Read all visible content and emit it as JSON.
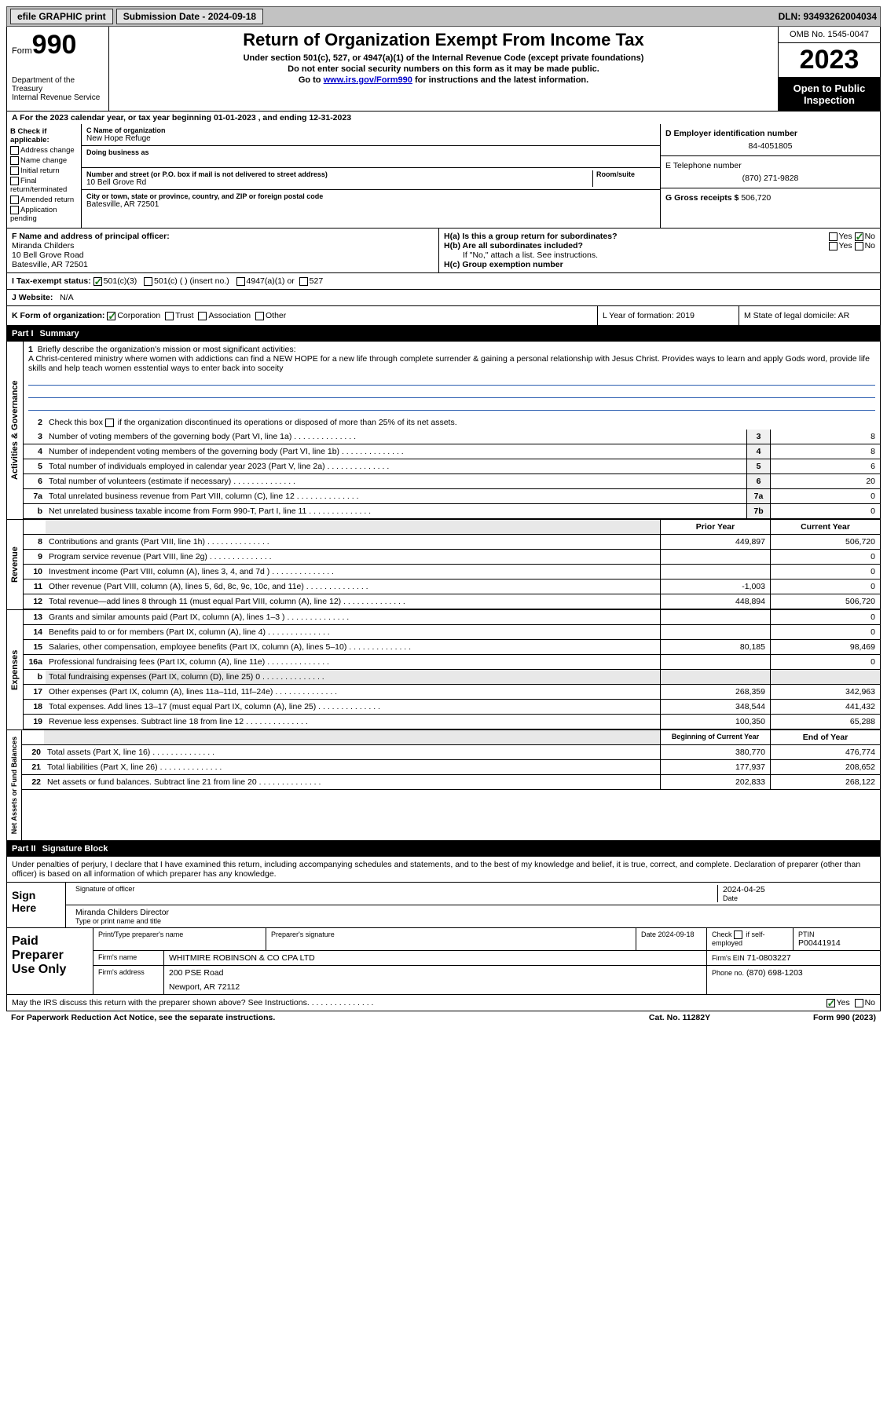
{
  "topbar": {
    "efile": "efile GRAPHIC print",
    "subdate_label": "Submission Date - 2024-09-18",
    "dln": "DLN: 93493262004034"
  },
  "header": {
    "form_prefix": "Form",
    "form_number": "990",
    "dept": "Department of the Treasury",
    "irs": "Internal Revenue Service",
    "title": "Return of Organization Exempt From Income Tax",
    "subtitle1": "Under section 501(c), 527, or 4947(a)(1) of the Internal Revenue Code (except private foundations)",
    "subtitle2": "Do not enter social security numbers on this form as it may be made public.",
    "subtitle3": "Go to www.irs.gov/Form990 for instructions and the latest information.",
    "omb": "OMB No. 1545-0047",
    "year": "2023",
    "public": "Open to Public Inspection"
  },
  "sectA": {
    "line": "A For the 2023 calendar year, or tax year beginning 01-01-2023   , and ending 12-31-2023",
    "b_label": "B Check if applicable:",
    "b_opts": [
      "Address change",
      "Name change",
      "Initial return",
      "Final return/terminated",
      "Amended return",
      "Application pending"
    ],
    "c_label": "C Name of organization",
    "c_name": "New Hope Refuge",
    "dba_label": "Doing business as",
    "addr_label": "Number and street (or P.O. box if mail is not delivered to street address)",
    "room_label": "Room/suite",
    "addr": "10 Bell Grove Rd",
    "city_label": "City or town, state or province, country, and ZIP or foreign postal code",
    "city": "Batesville, AR  72501",
    "d_label": "D Employer identification number",
    "d_ein": "84-4051805",
    "e_label": "E Telephone number",
    "e_phone": "(870) 271-9828",
    "g_label": "G Gross receipts $",
    "g_val": "506,720"
  },
  "sectF": {
    "f_label": "F Name and address of principal officer:",
    "f_name": "Miranda Childers",
    "f_addr": "10 Bell Grove Road",
    "f_city": "Batesville, AR  72501",
    "ha_label": "H(a)  Is this a group return for subordinates?",
    "hb_label": "H(b)  Are all subordinates included?",
    "hb_note": "If \"No,\" attach a list. See instructions.",
    "hc_label": "H(c)  Group exemption number",
    "yes": "Yes",
    "no": "No"
  },
  "sectI": {
    "label": "I   Tax-exempt status:",
    "opt1": "501(c)(3)",
    "opt2": "501(c) (  ) (insert no.)",
    "opt3": "4947(a)(1) or",
    "opt4": "527"
  },
  "sectJ": {
    "label": "J   Website:",
    "val": "N/A"
  },
  "sectK": {
    "label": "K Form of organization:",
    "opts": [
      "Corporation",
      "Trust",
      "Association",
      "Other"
    ],
    "l_label": "L Year of formation: 2019",
    "m_label": "M State of legal domicile: AR"
  },
  "part1": {
    "header": "Part I",
    "title": "Summary",
    "q1": "Briefly describe the organization's mission or most significant activities:",
    "mission": "A Christ-centered ministry where women with addictions can find a NEW HOPE for a new life through complete surrender & gaining a personal relationship with Jesus Christ. Provides ways to learn and apply Gods word, provide life skills and help teach women esstential ways to enter back into soceity",
    "q2": "Check this box       if the organization discontinued its operations or disposed of more than 25% of its net assets.",
    "rows_gov": [
      {
        "n": "3",
        "d": "Number of voting members of the governing body (Part VI, line 1a)",
        "b": "3",
        "v": "8"
      },
      {
        "n": "4",
        "d": "Number of independent voting members of the governing body (Part VI, line 1b)",
        "b": "4",
        "v": "8"
      },
      {
        "n": "5",
        "d": "Total number of individuals employed in calendar year 2023 (Part V, line 2a)",
        "b": "5",
        "v": "6"
      },
      {
        "n": "6",
        "d": "Total number of volunteers (estimate if necessary)",
        "b": "6",
        "v": "20"
      },
      {
        "n": "7a",
        "d": "Total unrelated business revenue from Part VIII, column (C), line 12",
        "b": "7a",
        "v": "0"
      },
      {
        "n": "b",
        "d": "Net unrelated business taxable income from Form 990-T, Part I, line 11",
        "b": "7b",
        "v": "0"
      }
    ],
    "prior": "Prior Year",
    "current": "Current Year",
    "rows_rev": [
      {
        "n": "8",
        "d": "Contributions and grants (Part VIII, line 1h)",
        "p": "449,897",
        "c": "506,720"
      },
      {
        "n": "9",
        "d": "Program service revenue (Part VIII, line 2g)",
        "p": "",
        "c": "0"
      },
      {
        "n": "10",
        "d": "Investment income (Part VIII, column (A), lines 3, 4, and 7d )",
        "p": "",
        "c": "0"
      },
      {
        "n": "11",
        "d": "Other revenue (Part VIII, column (A), lines 5, 6d, 8c, 9c, 10c, and 11e)",
        "p": "-1,003",
        "c": "0"
      },
      {
        "n": "12",
        "d": "Total revenue—add lines 8 through 11 (must equal Part VIII, column (A), line 12)",
        "p": "448,894",
        "c": "506,720"
      }
    ],
    "rows_exp": [
      {
        "n": "13",
        "d": "Grants and similar amounts paid (Part IX, column (A), lines 1–3 )",
        "p": "",
        "c": "0"
      },
      {
        "n": "14",
        "d": "Benefits paid to or for members (Part IX, column (A), line 4)",
        "p": "",
        "c": "0"
      },
      {
        "n": "15",
        "d": "Salaries, other compensation, employee benefits (Part IX, column (A), lines 5–10)",
        "p": "80,185",
        "c": "98,469"
      },
      {
        "n": "16a",
        "d": "Professional fundraising fees (Part IX, column (A), line 11e)",
        "p": "",
        "c": "0"
      },
      {
        "n": "b",
        "d": "Total fundraising expenses (Part IX, column (D), line 25) 0",
        "p": "",
        "c": "",
        "grey": true
      },
      {
        "n": "17",
        "d": "Other expenses (Part IX, column (A), lines 11a–11d, 11f–24e)",
        "p": "268,359",
        "c": "342,963"
      },
      {
        "n": "18",
        "d": "Total expenses. Add lines 13–17 (must equal Part IX, column (A), line 25)",
        "p": "348,544",
        "c": "441,432"
      },
      {
        "n": "19",
        "d": "Revenue less expenses. Subtract line 18 from line 12",
        "p": "100,350",
        "c": "65,288"
      }
    ],
    "beg": "Beginning of Current Year",
    "end": "End of Year",
    "rows_net": [
      {
        "n": "20",
        "d": "Total assets (Part X, line 16)",
        "p": "380,770",
        "c": "476,774"
      },
      {
        "n": "21",
        "d": "Total liabilities (Part X, line 26)",
        "p": "177,937",
        "c": "208,652"
      },
      {
        "n": "22",
        "d": "Net assets or fund balances. Subtract line 21 from line 20",
        "p": "202,833",
        "c": "268,122"
      }
    ],
    "vtext_gov": "Activities & Governance",
    "vtext_rev": "Revenue",
    "vtext_exp": "Expenses",
    "vtext_net": "Net Assets or Fund Balances"
  },
  "part2": {
    "header": "Part II",
    "title": "Signature Block",
    "decl": "Under penalties of perjury, I declare that I have examined this return, including accompanying schedules and statements, and to the best of my knowledge and belief, it is true, correct, and complete. Declaration of preparer (other than officer) is based on all information of which preparer has any knowledge.",
    "sign_here": "Sign Here",
    "sig_officer": "Signature of officer",
    "sig_name": "Miranda Childers  Director",
    "sig_type": "Type or print name and title",
    "date_label": "Date",
    "sig_date": "2024-04-25",
    "paid": "Paid Preparer Use Only",
    "prep_name_label": "Print/Type preparer's name",
    "prep_sig_label": "Preparer's signature",
    "prep_date": "Date 2024-09-18",
    "check_if": "Check        if self-employed",
    "ptin_label": "PTIN",
    "ptin": "P00441914",
    "firm_name_label": "Firm's name",
    "firm_name": "WHITMIRE ROBINSON & CO CPA LTD",
    "firm_ein_label": "Firm's EIN",
    "firm_ein": "71-0803227",
    "firm_addr_label": "Firm's address",
    "firm_addr": "200 PSE Road",
    "firm_city": "Newport, AR  72112",
    "phone_label": "Phone no.",
    "phone": "(870) 698-1203",
    "discuss": "May the IRS discuss this return with the preparer shown above? See Instructions."
  },
  "footer": {
    "paperwork": "For Paperwork Reduction Act Notice, see the separate instructions.",
    "cat": "Cat. No. 11282Y",
    "form": "Form 990 (2023)"
  },
  "colors": {
    "topbar_bg": "#c2c2c2",
    "black": "#000000",
    "link": "#0000cc",
    "check_green": "#1a7a1a",
    "line_blue": "#2a5db0"
  }
}
